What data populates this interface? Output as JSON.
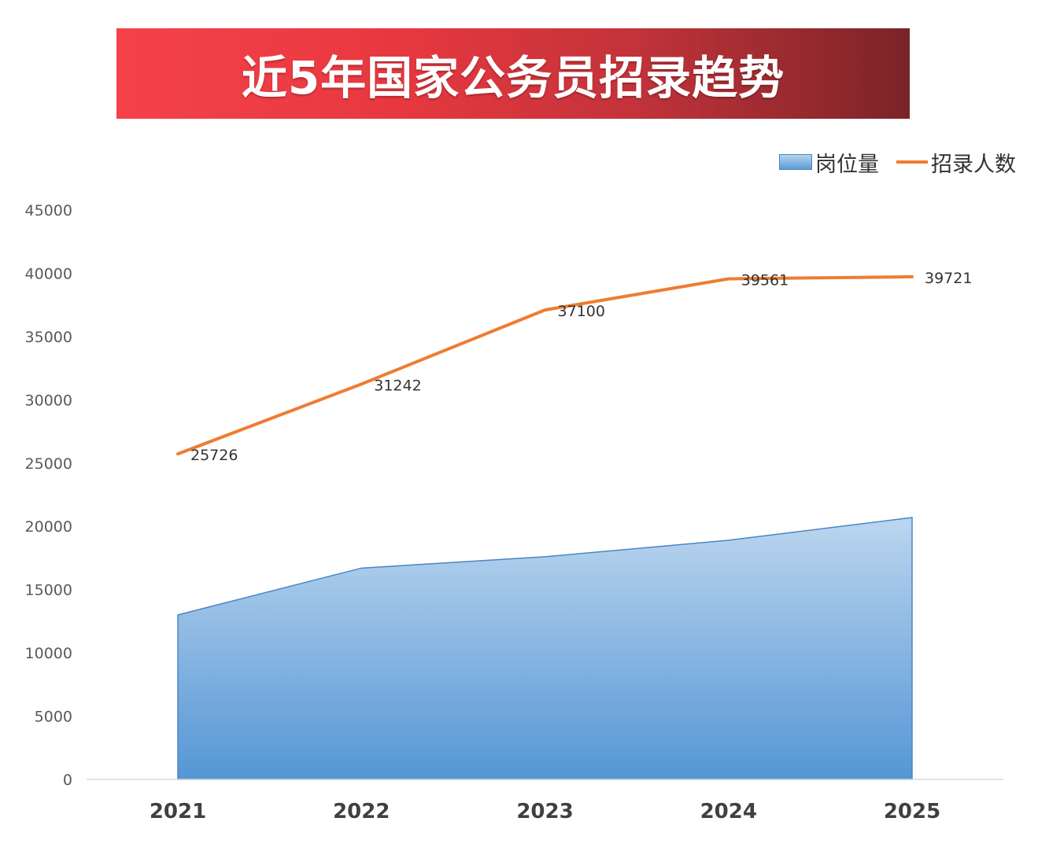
{
  "title": "近5年国家公务员招录趋势",
  "colors": {
    "area": "#5b9bd5",
    "line": "#ed7d31",
    "banner_start": "#f5424a",
    "banner_end": "#7a2428"
  },
  "chart_data": {
    "type": "area",
    "title": "近5年国家公务员招录趋势",
    "xlabel": "",
    "ylabel": "",
    "categories": [
      "2021",
      "2022",
      "2023",
      "2024",
      "2025"
    ],
    "ylim": [
      0,
      45000
    ],
    "yticks": [
      "0",
      "5000",
      "10000",
      "15000",
      "20000",
      "25000",
      "30000",
      "35000",
      "40000",
      "45000"
    ],
    "legend_position": "top-right",
    "grid": false,
    "series": [
      {
        "name": "岗位量",
        "type": "area",
        "values": [
          13000,
          16700,
          17600,
          18900,
          20700
        ]
      },
      {
        "name": "招录人数",
        "type": "line",
        "values": [
          25726,
          31242,
          37100,
          39561,
          39721
        ],
        "labels": [
          "25726",
          "31242",
          "37100",
          "39561",
          "39721"
        ]
      }
    ]
  }
}
